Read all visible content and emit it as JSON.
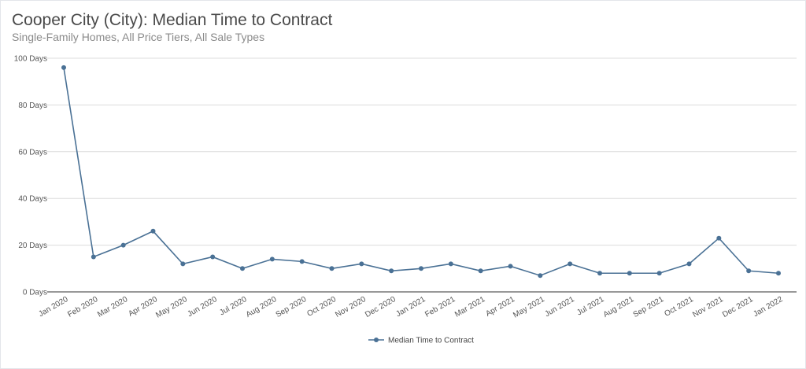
{
  "title": "Cooper City (City): Median Time to Contract",
  "subtitle": "Single-Family Homes, All Price Tiers, All Sale Types",
  "colors": {
    "series": "#4a7195",
    "grid": "#dcdcdc",
    "axis": "#333333"
  },
  "chart_data": {
    "type": "line",
    "title": "Cooper City (City): Median Time to Contract",
    "subtitle": "Single-Family Homes, All Price Tiers, All Sale Types",
    "categories": [
      "Jan 2020",
      "Feb 2020",
      "Mar 2020",
      "Apr 2020",
      "May 2020",
      "Jun 2020",
      "Jul 2020",
      "Aug 2020",
      "Sep 2020",
      "Oct 2020",
      "Nov 2020",
      "Dec 2020",
      "Jan 2021",
      "Feb 2021",
      "Mar 2021",
      "Apr 2021",
      "May 2021",
      "Jun 2021",
      "Jul 2021",
      "Aug 2021",
      "Sep 2021",
      "Oct 2021",
      "Nov 2021",
      "Dec 2021",
      "Jan 2022"
    ],
    "series": [
      {
        "name": "Median Time to Contract",
        "values": [
          96,
          15,
          20,
          26,
          12,
          15,
          10,
          14,
          13,
          10,
          12,
          9,
          10,
          12,
          9,
          11,
          7,
          12,
          8,
          8,
          8,
          12,
          23,
          9,
          8
        ]
      }
    ],
    "yticks": [
      "0 Days",
      "20 Days",
      "40 Days",
      "60 Days",
      "80 Days",
      "100 Days"
    ],
    "ylim": [
      0,
      100
    ],
    "grid": true,
    "legend_position": "bottom-center"
  }
}
